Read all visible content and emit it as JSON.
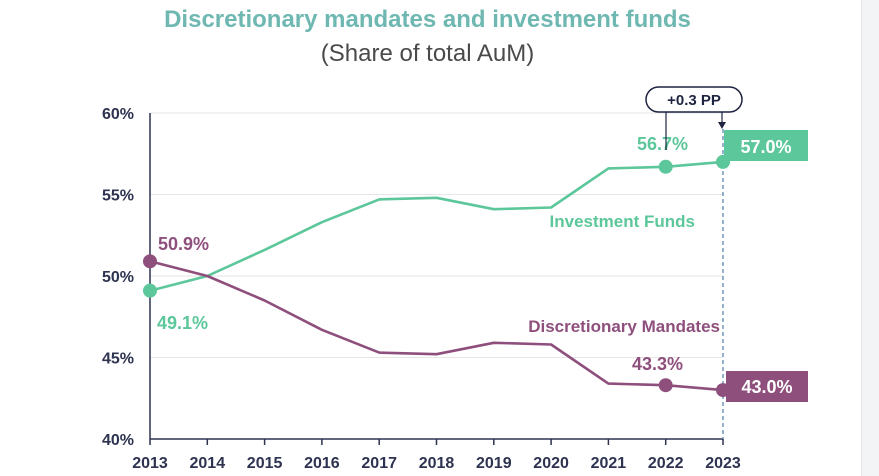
{
  "title": "Discretionary mandates and investment funds",
  "subtitle": "(Share of total AuM)",
  "colors": {
    "funds": "#5cc79a",
    "mandates": "#8e4f7c",
    "axis": "#2d3350",
    "grid": "#e6e6e6"
  },
  "callout": "+0.3 PP",
  "chart_data": {
    "type": "line",
    "title": "Discretionary mandates and investment funds",
    "subtitle": "(Share of total AuM)",
    "x": [
      "2013",
      "2014",
      "2015",
      "2016",
      "2017",
      "2018",
      "2019",
      "2020",
      "2021",
      "2022",
      "2023"
    ],
    "y_ticks": [
      "40%",
      "45%",
      "50%",
      "55%",
      "60%"
    ],
    "ylim": [
      40,
      60
    ],
    "grid": true,
    "series": [
      {
        "name": "Investment Funds",
        "values": [
          49.1,
          50.0,
          51.6,
          53.3,
          54.7,
          54.8,
          54.1,
          54.2,
          56.6,
          56.7,
          57.0
        ],
        "labels": {
          "first": "49.1%",
          "prev": "56.7%",
          "last": "57.0%"
        }
      },
      {
        "name": "Discretionary Mandates",
        "values": [
          50.9,
          50.0,
          48.5,
          46.7,
          45.3,
          45.2,
          45.9,
          45.8,
          43.4,
          43.3,
          43.0
        ],
        "labels": {
          "first": "50.9%",
          "prev": "43.3%",
          "last": "43.0%"
        }
      }
    ]
  }
}
